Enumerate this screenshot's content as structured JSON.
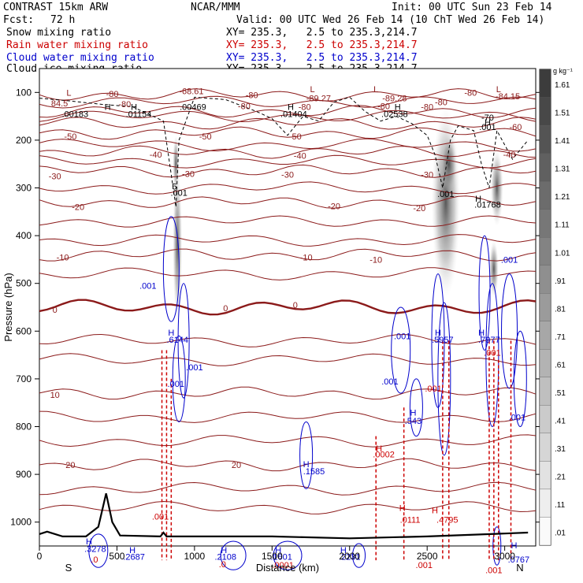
{
  "header": {
    "model": "CONTRAST 15km ARW",
    "org": "NCAR/MMM",
    "init": "Init: 00 UTC Sun 23 Feb 14",
    "fcst_label": "Fcst:",
    "fcst_value": "72 h",
    "valid": "Valid: 00 UTC Wed 26 Feb 14 (10 ChT Wed 26 Feb 14)",
    "legend": [
      {
        "name": "Snow mixing ratio",
        "xy": "XY= 235.3,   2.5 to 235.3,214.7",
        "color": "#000000"
      },
      {
        "name": "Rain water mixing ratio",
        "xy": "XY= 235.3,   2.5 to 235.3,214.7",
        "color": "#cc0000"
      },
      {
        "name": "Cloud water mixing ratio",
        "xy": "XY= 235.3,   2.5 to 235.3,214.7",
        "color": "#0000cc"
      },
      {
        "name": "Cloud ice mixing ratio",
        "xy": "XY= 235.3,   2.5 to 235.3,214.7",
        "color": "#000000"
      }
    ]
  },
  "chart_data": {
    "type": "cross-section",
    "xlabel": "Distance (km)",
    "ylabel": "Pressure (hPa)",
    "xlim": [
      0,
      3200
    ],
    "ylim": [
      1050,
      50
    ],
    "x_ticks": [
      0,
      500,
      1000,
      1500,
      2000,
      2500,
      3000
    ],
    "x_tick_labels": [
      "0",
      "500",
      "1000",
      "1500",
      "2000",
      "2500",
      "3000"
    ],
    "y_ticks": [
      100,
      200,
      300,
      400,
      500,
      600,
      700,
      800,
      900,
      1000
    ],
    "y_tick_labels": [
      "100",
      "200",
      "300",
      "400",
      "500",
      "600",
      "700",
      "800",
      "900",
      "1000"
    ],
    "endpoints": {
      "left": "S",
      "right": "N"
    },
    "colorbar": {
      "unit": "g kg⁻¹",
      "levels": [
        "1.61",
        "1.51",
        "1.41",
        "1.31",
        "1.21",
        "1.11",
        "1.01",
        ".91",
        ".81",
        ".71",
        ".61",
        ".51",
        ".41",
        ".31",
        ".21",
        ".11",
        ".01"
      ]
    },
    "temperature_isotherms": [
      {
        "label": "-80",
        "p": 105
      },
      {
        "label": "-70",
        "p": 140
      },
      {
        "label": "-60",
        "p": 165
      },
      {
        "label": "-50",
        "p": 185
      },
      {
        "label": "-40",
        "p": 225
      },
      {
        "label": "-30",
        "p": 265
      },
      {
        "label": "-20",
        "p": 330
      },
      {
        "label": "-10",
        "p": 440
      },
      {
        "label": "0",
        "p": 550
      },
      {
        "label": "10",
        "p": 730
      },
      {
        "label": "20",
        "p": 880
      }
    ],
    "isotherm_labels": [
      {
        "text": "-80",
        "x": 470,
        "p": 103,
        "color": "#8b1a1a"
      },
      {
        "text": "-68.61",
        "x": 980,
        "p": 97,
        "color": "#8b1a1a"
      },
      {
        "text": "-80",
        "x": 1370,
        "p": 105,
        "color": "#8b1a1a"
      },
      {
        "text": "-89.27",
        "x": 1800,
        "p": 112,
        "color": "#8b1a1a"
      },
      {
        "text": "-89.28",
        "x": 2290,
        "p": 112,
        "color": "#8b1a1a"
      },
      {
        "text": "-80",
        "x": 2780,
        "p": 100,
        "color": "#8b1a1a"
      },
      {
        "text": "-84.15",
        "x": 3020,
        "p": 108,
        "color": "#8b1a1a"
      },
      {
        "text": "-80",
        "x": 2590,
        "p": 120,
        "color": "#8b1a1a"
      },
      {
        "text": "84.5",
        "x": 130,
        "p": 123,
        "color": "#8b1a1a"
      },
      {
        "text": "-80",
        "x": 550,
        "p": 124,
        "color": "#8b1a1a"
      },
      {
        "text": "-80",
        "x": 1320,
        "p": 128,
        "color": "#8b1a1a"
      },
      {
        "text": "-80",
        "x": 1710,
        "p": 130,
        "color": "#8b1a1a"
      },
      {
        "text": "-80",
        "x": 2220,
        "p": 128,
        "color": "#8b1a1a"
      },
      {
        "text": "-80",
        "x": 2500,
        "p": 130,
        "color": "#8b1a1a"
      },
      {
        "text": "-70",
        "x": 2890,
        "p": 152,
        "color": "#000000"
      },
      {
        "text": "-60",
        "x": 3070,
        "p": 172,
        "color": "#8b1a1a"
      },
      {
        "text": "-50",
        "x": 200,
        "p": 192,
        "color": "#8b1a1a"
      },
      {
        "text": "-50",
        "x": 1070,
        "p": 192,
        "color": "#8b1a1a"
      },
      {
        "text": "-50",
        "x": 1650,
        "p": 192,
        "color": "#8b1a1a"
      },
      {
        "text": "-40",
        "x": 750,
        "p": 230,
        "color": "#8b1a1a"
      },
      {
        "text": "-40",
        "x": 1680,
        "p": 232,
        "color": "#8b1a1a"
      },
      {
        "text": "-40",
        "x": 3030,
        "p": 230,
        "color": "#8b1a1a"
      },
      {
        "text": "-30",
        "x": 100,
        "p": 275,
        "color": "#8b1a1a"
      },
      {
        "text": "-30",
        "x": 960,
        "p": 270,
        "color": "#8b1a1a"
      },
      {
        "text": "-30",
        "x": 1600,
        "p": 272,
        "color": "#8b1a1a"
      },
      {
        "text": "-30",
        "x": 2500,
        "p": 272,
        "color": "#8b1a1a"
      },
      {
        "text": "-20",
        "x": 250,
        "p": 340,
        "color": "#8b1a1a"
      },
      {
        "text": "-20",
        "x": 1900,
        "p": 338,
        "color": "#8b1a1a"
      },
      {
        "text": "-20",
        "x": 2450,
        "p": 342,
        "color": "#8b1a1a"
      },
      {
        "text": "-10",
        "x": 150,
        "p": 445,
        "color": "#8b1a1a"
      },
      {
        "text": "-10",
        "x": 1720,
        "p": 445,
        "color": "#8b1a1a"
      },
      {
        "text": "-10",
        "x": 2170,
        "p": 450,
        "color": "#8b1a1a"
      },
      {
        "text": "0",
        "x": 100,
        "p": 555,
        "color": "#8b1a1a"
      },
      {
        "text": "0",
        "x": 1200,
        "p": 552,
        "color": "#8b1a1a"
      },
      {
        "text": "0",
        "x": 1650,
        "p": 545,
        "color": "#8b1a1a"
      },
      {
        "text": "10",
        "x": 100,
        "p": 733,
        "color": "#8b1a1a"
      },
      {
        "text": "20",
        "x": 200,
        "p": 880,
        "color": "#8b1a1a"
      },
      {
        "text": "20",
        "x": 1270,
        "p": 880,
        "color": "#8b1a1a"
      }
    ],
    "high_low_labels": [
      {
        "text": "L",
        "x": 190,
        "p": 100,
        "color": "#8b1a1a"
      },
      {
        "text": "L",
        "x": 1760,
        "p": 93,
        "color": "#8b1a1a"
      },
      {
        "text": "L",
        "x": 2170,
        "p": 93,
        "color": "#8b1a1a"
      },
      {
        "text": "L",
        "x": 2960,
        "p": 93,
        "color": "#8b1a1a"
      },
      {
        "text": "H",
        "x": 440,
        "p": 130,
        "color": "#000000"
      },
      {
        "text": ".00183",
        "x": 230,
        "p": 145,
        "color": "#000000"
      },
      {
        "text": "H",
        "x": 610,
        "p": 130,
        "color": "#000000"
      },
      {
        "text": ".01154",
        "x": 640,
        "p": 145,
        "color": "#000000"
      },
      {
        "text": ".00469",
        "x": 990,
        "p": 130,
        "color": "#000000"
      },
      {
        "text": "H",
        "x": 1620,
        "p": 130,
        "color": "#000000"
      },
      {
        "text": ".01404",
        "x": 1640,
        "p": 145,
        "color": "#000000"
      },
      {
        "text": "H",
        "x": 2310,
        "p": 130,
        "color": "#000000"
      },
      {
        "text": ".02538",
        "x": 2290,
        "p": 145,
        "color": "#000000"
      },
      {
        "text": "H",
        "x": 2890,
        "p": 162,
        "color": "#000000"
      },
      {
        "text": ".001",
        "x": 2890,
        "p": 172,
        "color": "#000000"
      },
      {
        "text": "5",
        "x": 870,
        "p": 297,
        "color": "#000000"
      },
      {
        "text": ".001",
        "x": 900,
        "p": 310,
        "color": "#000000"
      },
      {
        "text": ".001",
        "x": 2620,
        "p": 312,
        "color": "#000000"
      },
      {
        "text": "H",
        "x": 2830,
        "p": 322,
        "color": "#000000"
      },
      {
        "text": ".01768",
        "x": 2890,
        "p": 335,
        "color": "#000000"
      },
      {
        "text": ".001",
        "x": 700,
        "p": 505,
        "color": "#0000cc"
      },
      {
        "text": ".001",
        "x": 3030,
        "p": 450,
        "color": "#0000cc"
      },
      {
        "text": "H",
        "x": 850,
        "p": 603,
        "color": "#0000cc"
      },
      {
        "text": ".6144",
        "x": 890,
        "p": 618,
        "color": "#0000cc"
      },
      {
        "text": ".001",
        "x": 1000,
        "p": 675,
        "color": "#0000cc"
      },
      {
        "text": ".001",
        "x": 880,
        "p": 710,
        "color": "#0000cc"
      },
      {
        "text": ".001",
        "x": 2340,
        "p": 610,
        "color": "#0000cc"
      },
      {
        "text": "H",
        "x": 2570,
        "p": 603,
        "color": "#0000cc"
      },
      {
        "text": ".5957",
        "x": 2600,
        "p": 618,
        "color": "#0000cc"
      },
      {
        "text": "H",
        "x": 2850,
        "p": 603,
        "color": "#0000cc"
      },
      {
        "text": ".7977",
        "x": 2900,
        "p": 618,
        "color": "#0000cc"
      },
      {
        "text": ".001",
        "x": 2260,
        "p": 705,
        "color": "#0000cc"
      },
      {
        "text": "H",
        "x": 2410,
        "p": 770,
        "color": "#0000cc"
      },
      {
        "text": ".543",
        "x": 2410,
        "p": 788,
        "color": "#0000cc"
      },
      {
        "text": ".001",
        "x": 3080,
        "p": 780,
        "color": "#0000cc"
      },
      {
        "text": "H",
        "x": 1720,
        "p": 878,
        "color": "#0000cc"
      },
      {
        "text": ".1585",
        "x": 1770,
        "p": 893,
        "color": "#0000cc"
      },
      {
        "text": "H",
        "x": 320,
        "p": 1040,
        "color": "#0000cc"
      },
      {
        "text": ".3278",
        "x": 360,
        "p": 1056,
        "color": "#0000cc"
      },
      {
        "text": "H",
        "x": 600,
        "p": 1058,
        "color": "#0000cc"
      },
      {
        "text": ".2687",
        "x": 610,
        "p": 1072,
        "color": "#0000cc"
      },
      {
        "text": ".2108",
        "x": 1200,
        "p": 1072,
        "color": "#0000cc"
      },
      {
        "text": "H",
        "x": 1190,
        "p": 1058,
        "color": "#0000cc"
      },
      {
        "text": "H",
        "x": 1540,
        "p": 1058,
        "color": "#0000cc"
      },
      {
        "text": ".1601",
        "x": 1560,
        "p": 1072,
        "color": "#0000cc"
      },
      {
        "text": "H",
        "x": 1960,
        "p": 1058,
        "color": "#0000cc"
      },
      {
        "text": ".2231",
        "x": 2000,
        "p": 1072,
        "color": "#0000cc"
      },
      {
        "text": "H",
        "x": 3060,
        "p": 1048,
        "color": "#0000cc"
      },
      {
        "text": ".0767",
        "x": 3090,
        "p": 1078,
        "color": "#0000cc"
      },
      {
        "text": ".001",
        "x": 780,
        "p": 988,
        "color": "#cc0000"
      },
      {
        "text": ".0",
        "x": 355,
        "p": 1078,
        "color": "#cc0000"
      },
      {
        "text": ".0",
        "x": 1180,
        "p": 1088,
        "color": "#cc0000"
      },
      {
        "text": ".0001",
        "x": 1570,
        "p": 1090,
        "color": "#cc0000"
      },
      {
        "text": "H",
        "x": 2190,
        "p": 845,
        "color": "#cc0000"
      },
      {
        "text": ".0002",
        "x": 2220,
        "p": 858,
        "color": "#cc0000"
      },
      {
        "text": ".001",
        "x": 2540,
        "p": 720,
        "color": "#cc0000"
      },
      {
        "text": ".0111",
        "x": 2390,
        "p": 995,
        "color": "#cc0000"
      },
      {
        "text": "H",
        "x": 2340,
        "p": 970,
        "color": "#cc0000"
      },
      {
        "text": "H",
        "x": 2550,
        "p": 975,
        "color": "#cc0000"
      },
      {
        "text": ".4795",
        "x": 2630,
        "p": 995,
        "color": "#cc0000"
      },
      {
        "text": ".001",
        "x": 2480,
        "p": 1090,
        "color": "#cc0000"
      },
      {
        "text": ".001",
        "x": 2930,
        "p": 1100,
        "color": "#cc0000"
      },
      {
        "text": ".001",
        "x": 2920,
        "p": 645,
        "color": "#cc0000"
      }
    ],
    "series": [
      {
        "name": "Cloud ice mixing ratio max",
        "p_levels": [
          300,
          350
        ],
        "x": [
          2620,
          2950
        ]
      },
      {
        "name": "Rain water mixing ratio max",
        "value": 0.4795
      },
      {
        "name": "Cloud water mixing ratio max",
        "value": 0.7977
      }
    ]
  }
}
